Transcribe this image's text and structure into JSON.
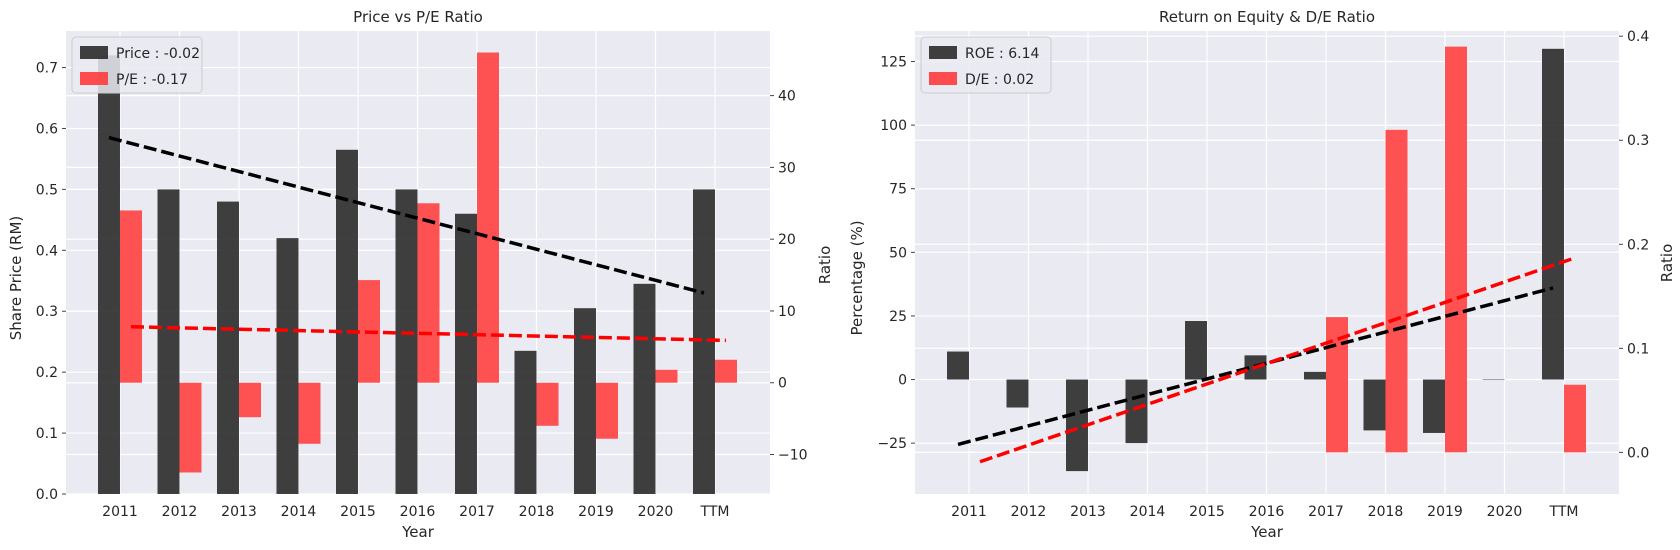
{
  "chart_data": [
    {
      "type": "bar",
      "title": "Price vs P/E Ratio",
      "xlabel": "Year",
      "ylabel_left": "Share Price (RM)",
      "ylabel_right": "Ratio",
      "categories": [
        "2011",
        "2012",
        "2013",
        "2014",
        "2015",
        "2016",
        "2017",
        "2018",
        "2019",
        "2020",
        "TTM"
      ],
      "ylim_left": [
        0,
        0.76
      ],
      "ylim_right": [
        -15.5,
        49
      ],
      "yticks_left": [
        0.0,
        0.1,
        0.2,
        0.3,
        0.4,
        0.5,
        0.6,
        0.7
      ],
      "yticks_right": [
        -10,
        0,
        10,
        20,
        30,
        40
      ],
      "ytick_labels_left": [
        "0.0",
        "0.1",
        "0.2",
        "0.3",
        "0.4",
        "0.5",
        "0.6",
        "0.7"
      ],
      "ytick_labels_right": [
        "−10",
        "0",
        "10",
        "20",
        "30",
        "40"
      ],
      "legend_position": "upper-left",
      "grid": true,
      "series": [
        {
          "name": "Price : -0.02",
          "axis": "left",
          "color": "#2b2b2b",
          "values": [
            0.72,
            0.5,
            0.48,
            0.42,
            0.565,
            0.5,
            0.46,
            0.235,
            0.305,
            0.345,
            0.5
          ]
        },
        {
          "name": "P/E : -0.17",
          "axis": "right",
          "color": "#ff3b3b",
          "values": [
            24.0,
            -12.5,
            -4.8,
            -8.5,
            14.3,
            25.0,
            46.0,
            -6.0,
            -7.8,
            1.8,
            3.2
          ]
        }
      ],
      "trendlines": [
        {
          "axis": "left",
          "color": "#000000",
          "from_index": 0,
          "to_index": 10,
          "from_value": 0.585,
          "to_value": 0.33
        },
        {
          "axis": "right",
          "color": "#ff0000",
          "from_index": 0,
          "to_index": 10,
          "from_value": 7.8,
          "to_value": 5.9
        }
      ]
    },
    {
      "type": "bar",
      "title": "Return on Equity & D/E Ratio",
      "xlabel": "Year",
      "ylabel_left": "Percentage (%)",
      "ylabel_right": "Ratio",
      "categories": [
        "2011",
        "2012",
        "2013",
        "2014",
        "2015",
        "2016",
        "2017",
        "2018",
        "2019",
        "2020",
        "TTM"
      ],
      "ylim_left": [
        -45,
        137
      ],
      "ylim_right": [
        -0.04,
        0.405
      ],
      "yticks_left": [
        -25,
        0,
        25,
        50,
        75,
        100,
        125
      ],
      "yticks_right": [
        0.0,
        0.1,
        0.2,
        0.3,
        0.4
      ],
      "ytick_labels_left": [
        "−25",
        "0",
        "25",
        "50",
        "75",
        "100",
        "125"
      ],
      "ytick_labels_right": [
        "0.0",
        "0.1",
        "0.2",
        "0.3",
        "0.4"
      ],
      "legend_position": "upper-left",
      "grid": true,
      "series": [
        {
          "name": "ROE : 6.14",
          "axis": "left",
          "color": "#2b2b2b",
          "values": [
            11,
            -11,
            -36,
            -25,
            23,
            9.5,
            3,
            -20,
            -21,
            0,
            130
          ]
        },
        {
          "name": "D/E : 0.02",
          "axis": "right",
          "color": "#ff3b3b",
          "values": [
            null,
            null,
            null,
            null,
            null,
            null,
            0.13,
            0.31,
            0.39,
            null,
            0.065
          ]
        }
      ],
      "trendlines": [
        {
          "axis": "left",
          "color": "#000000",
          "from_index": 0,
          "to_index": 10,
          "from_value": -25.5,
          "to_value": 36
        },
        {
          "axis": "right",
          "color": "#ff0000",
          "from_index": 0,
          "to_index": 10,
          "from_value": -0.009,
          "to_value": 0.187
        }
      ]
    }
  ]
}
